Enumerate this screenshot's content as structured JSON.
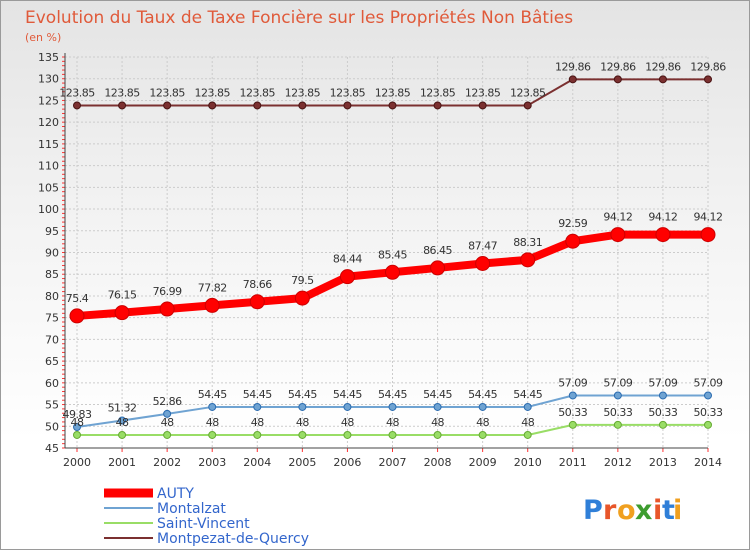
{
  "chart_data": {
    "type": "line",
    "title": "Evolution du Taux de Taxe Foncière sur les Propriétés Non Bâties",
    "ylabel": "(en %)",
    "xlabel": "",
    "x": [
      "2000",
      "2001",
      "2002",
      "2003",
      "2004",
      "2005",
      "2006",
      "2007",
      "2008",
      "2009",
      "2010",
      "2011",
      "2012",
      "2013",
      "2014"
    ],
    "ylim": [
      45,
      135
    ],
    "yticks": [
      45,
      50,
      55,
      60,
      65,
      70,
      75,
      80,
      85,
      90,
      95,
      100,
      105,
      110,
      115,
      120,
      125,
      130,
      135
    ],
    "grid": true,
    "legend_position": "bottom-left",
    "series": [
      {
        "name": "AUTY",
        "color": "#ff0000",
        "values": [
          75.4,
          76.15,
          76.99,
          77.82,
          78.66,
          79.5,
          84.44,
          85.45,
          86.45,
          87.47,
          88.31,
          92.59,
          94.12,
          94.12,
          94.12
        ],
        "labels": [
          "75.4",
          "76.15",
          "76.99",
          "77.82",
          "78.66",
          "79.5",
          "84.44",
          "85.45",
          "86.45",
          "87.47",
          "88.31",
          "92.59",
          "94.12",
          "94.12",
          "94.12"
        ]
      },
      {
        "name": "Montalzat",
        "color": "#6fa3d2",
        "values": [
          49.83,
          51.32,
          52.86,
          54.45,
          54.45,
          54.45,
          54.45,
          54.45,
          54.45,
          54.45,
          54.45,
          57.09,
          57.09,
          57.09,
          57.09
        ],
        "labels": [
          "49.83",
          "51.32",
          "52.86",
          "54.45",
          "54.45",
          "54.45",
          "54.45",
          "54.45",
          "54.45",
          "54.45",
          "54.45",
          "57.09",
          "57.09",
          "57.09",
          "57.09"
        ]
      },
      {
        "name": "Saint-Vincent",
        "color": "#99dd66",
        "values": [
          48,
          48,
          48,
          48,
          48,
          48,
          48,
          48,
          48,
          48,
          48,
          50.33,
          50.33,
          50.33,
          50.33
        ],
        "labels": [
          "48",
          "48",
          "48",
          "48",
          "48",
          "48",
          "48",
          "48",
          "48",
          "48",
          "48",
          "50.33",
          "50.33",
          "50.33",
          "50.33"
        ]
      },
      {
        "name": "Montpezat-de-Quercy",
        "color": "#7b3030",
        "values": [
          123.85,
          123.85,
          123.85,
          123.85,
          123.85,
          123.85,
          123.85,
          123.85,
          123.85,
          123.85,
          123.85,
          129.86,
          129.86,
          129.86,
          129.86
        ],
        "labels": [
          "123.85",
          "123.85",
          "123.85",
          "123.85",
          "123.85",
          "123.85",
          "123.85",
          "123.85",
          "123.85",
          "123.85",
          "123.85",
          "129.86",
          "129.86",
          "129.86",
          "129.86"
        ]
      }
    ]
  },
  "logo": {
    "text": "Proxiti"
  },
  "colors": {
    "title": "#e05a3a",
    "axis": "#444444",
    "grid": "#cccccc",
    "tick_red": "#ff3333",
    "label": "#333333",
    "legend_text": "#3366cc"
  }
}
